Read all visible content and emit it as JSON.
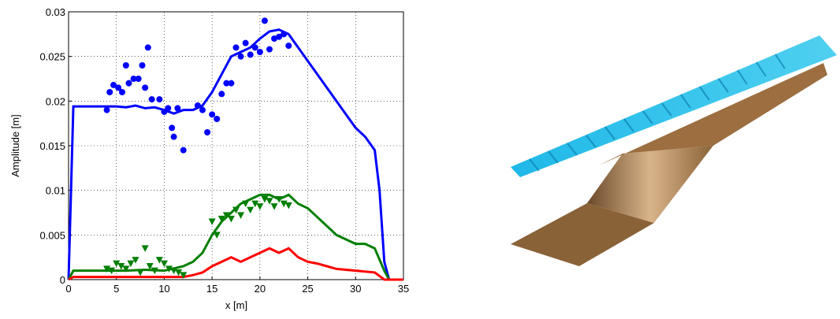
{
  "chart_data": {
    "type": "line",
    "xlabel": "x [m]",
    "ylabel": "Amplitude [m]",
    "xlim": [
      0,
      35
    ],
    "ylim": [
      0,
      0.03
    ],
    "xticks": [
      0,
      5,
      10,
      15,
      20,
      25,
      30,
      35
    ],
    "yticks": [
      0,
      0.005,
      0.01,
      0.015,
      0.02,
      0.025,
      0.03
    ],
    "grid": true,
    "series": [
      {
        "color": "#0000ff",
        "marker": "line",
        "x": [
          0,
          0.5,
          1,
          2,
          3,
          4,
          5,
          6,
          7,
          8,
          9,
          10,
          11,
          12,
          13,
          14,
          15,
          16,
          17,
          18,
          19,
          20,
          21,
          22,
          23,
          24,
          25,
          26,
          27,
          28,
          29,
          30,
          31,
          32,
          32.5,
          33,
          33.5,
          35
        ],
        "values": [
          0,
          0.0194,
          0.0194,
          0.0194,
          0.0194,
          0.0194,
          0.0194,
          0.0193,
          0.0195,
          0.0192,
          0.0193,
          0.019,
          0.0186,
          0.019,
          0.019,
          0.0195,
          0.021,
          0.023,
          0.025,
          0.0255,
          0.026,
          0.027,
          0.0278,
          0.028,
          0.0275,
          0.026,
          0.0245,
          0.023,
          0.0215,
          0.02,
          0.0185,
          0.017,
          0.016,
          0.0145,
          0.01,
          0.002,
          0,
          0
        ]
      },
      {
        "color": "#007f00",
        "marker": "line",
        "x": [
          0,
          0.5,
          2,
          4,
          6,
          8,
          10,
          12,
          13,
          14,
          15,
          16,
          17,
          18,
          19,
          20,
          21,
          22,
          23,
          24,
          25,
          26,
          27,
          28,
          29,
          30,
          31,
          32,
          33,
          33.5,
          35
        ],
        "values": [
          0,
          0.001,
          0.001,
          0.001,
          0.001,
          0.0011,
          0.001,
          0.0015,
          0.002,
          0.003,
          0.005,
          0.0065,
          0.0075,
          0.0085,
          0.009,
          0.0095,
          0.0095,
          0.009,
          0.0095,
          0.0085,
          0.008,
          0.007,
          0.006,
          0.005,
          0.0045,
          0.004,
          0.004,
          0.0035,
          0.001,
          0,
          0
        ]
      },
      {
        "color": "#ff0000",
        "marker": "line",
        "x": [
          0,
          0.5,
          4,
          8,
          12,
          13,
          14,
          15,
          16,
          17,
          18,
          19,
          20,
          21,
          22,
          23,
          24,
          25,
          26,
          27,
          28,
          30,
          32,
          33,
          35
        ],
        "values": [
          0,
          0.0003,
          0.0003,
          0.0003,
          0.0003,
          0.0005,
          0.0008,
          0.0015,
          0.002,
          0.0025,
          0.002,
          0.0025,
          0.003,
          0.0035,
          0.003,
          0.0035,
          0.0025,
          0.002,
          0.0018,
          0.0015,
          0.0012,
          0.001,
          0.0008,
          0,
          0
        ]
      },
      {
        "color": "#0000ff",
        "marker": "circle",
        "x": [
          4,
          4.3,
          4.7,
          5.2,
          5.6,
          6,
          6.3,
          6.8,
          7.3,
          7.7,
          8,
          8.3,
          8.7,
          9.5,
          10,
          10.4,
          10.8,
          11,
          11.4,
          12,
          13.5,
          14,
          14.5,
          15,
          15.5,
          16,
          16.5,
          17,
          17.5,
          18,
          18.5,
          19,
          19.5,
          20,
          20.5,
          21,
          21.5,
          22,
          22.5,
          23
        ],
        "values": [
          0.019,
          0.021,
          0.0218,
          0.0215,
          0.021,
          0.024,
          0.022,
          0.0225,
          0.0225,
          0.024,
          0.0215,
          0.026,
          0.0202,
          0.0202,
          0.0188,
          0.0192,
          0.017,
          0.016,
          0.0192,
          0.0145,
          0.0195,
          0.019,
          0.0165,
          0.0185,
          0.018,
          0.0208,
          0.022,
          0.022,
          0.026,
          0.025,
          0.0265,
          0.0252,
          0.026,
          0.0255,
          0.029,
          0.0258,
          0.027,
          0.0272,
          0.0275,
          0.0262
        ]
      },
      {
        "color": "#007f00",
        "marker": "triangle",
        "x": [
          4,
          4.5,
          5,
          5.5,
          6,
          6.5,
          7,
          7.5,
          8,
          8.5,
          9,
          9.5,
          10,
          10.5,
          11,
          11.5,
          12,
          15,
          15.5,
          16,
          16.5,
          17,
          17.5,
          18,
          18.5,
          19,
          19.5,
          20,
          20.5,
          21,
          21.5,
          22,
          22.5,
          23
        ],
        "values": [
          0.0012,
          0.001,
          0.0018,
          0.0015,
          0.0012,
          0.0018,
          0.0022,
          0.0008,
          0.0035,
          0.0015,
          0.001,
          0.0022,
          0.0018,
          0.0012,
          0.001,
          0.0008,
          0.0005,
          0.0065,
          0.005,
          0.0068,
          0.0072,
          0.0068,
          0.0078,
          0.0072,
          0.0085,
          0.0078,
          0.0085,
          0.0082,
          0.009,
          0.0088,
          0.0082,
          0.009,
          0.0085,
          0.0083
        ]
      }
    ]
  }
}
